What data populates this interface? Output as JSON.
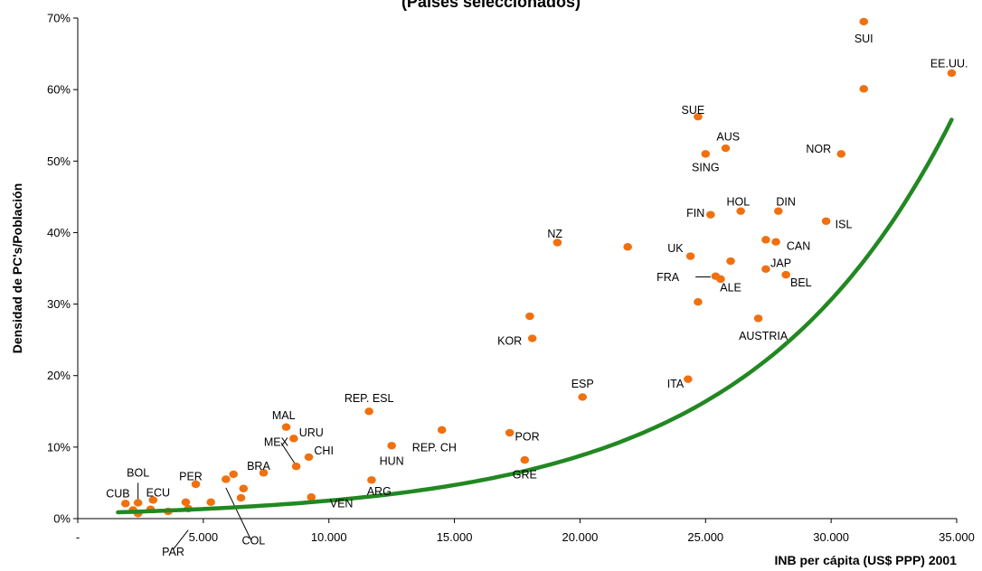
{
  "chart_data": {
    "type": "scatter",
    "title": "(Países seleccionados)",
    "xlabel": "INB per cápita (US$ PPP) 2001",
    "ylabel": "Densidad de PC's/Población",
    "xlim": [
      0,
      35000
    ],
    "ylim": [
      0,
      70
    ],
    "x_ticks": [
      {
        "value": 0,
        "label": "-"
      },
      {
        "value": 5000,
        "label": "5.000"
      },
      {
        "value": 10000,
        "label": "10.000"
      },
      {
        "value": 15000,
        "label": "15.000"
      },
      {
        "value": 20000,
        "label": "20.000"
      },
      {
        "value": 25000,
        "label": "25.000"
      },
      {
        "value": 30000,
        "label": "30.000"
      },
      {
        "value": 35000,
        "label": "35.000"
      }
    ],
    "y_ticks": [
      {
        "value": 0,
        "label": "0%"
      },
      {
        "value": 10,
        "label": "10%"
      },
      {
        "value": 20,
        "label": "20%"
      },
      {
        "value": 30,
        "label": "30%"
      },
      {
        "value": 40,
        "label": "40%"
      },
      {
        "value": 50,
        "label": "50%"
      },
      {
        "value": 60,
        "label": "60%"
      },
      {
        "value": 70,
        "label": "70%"
      }
    ],
    "marker_color": "#f07010",
    "trend_color": "#228822",
    "points": [
      {
        "x": 31300,
        "y": 69.5
      },
      {
        "x": 34800,
        "y": 62.3
      },
      {
        "x": 31300,
        "y": 60.1
      },
      {
        "x": 24700,
        "y": 56.2
      },
      {
        "x": 25800,
        "y": 51.8
      },
      {
        "x": 25000,
        "y": 51.0
      },
      {
        "x": 30400,
        "y": 51.0
      },
      {
        "x": 25200,
        "y": 42.5
      },
      {
        "x": 26400,
        "y": 43.0
      },
      {
        "x": 27900,
        "y": 43.0
      },
      {
        "x": 29800,
        "y": 41.6
      },
      {
        "x": 19100,
        "y": 38.6
      },
      {
        "x": 21900,
        "y": 38.0
      },
      {
        "x": 27400,
        "y": 39.0
      },
      {
        "x": 27800,
        "y": 38.7
      },
      {
        "x": 24400,
        "y": 36.7
      },
      {
        "x": 26000,
        "y": 36.0
      },
      {
        "x": 27400,
        "y": 34.9
      },
      {
        "x": 28200,
        "y": 34.1
      },
      {
        "x": 25400,
        "y": 33.9
      },
      {
        "x": 25600,
        "y": 33.5
      },
      {
        "x": 24700,
        "y": 30.3
      },
      {
        "x": 27100,
        "y": 28.0
      },
      {
        "x": 18000,
        "y": 28.3
      },
      {
        "x": 18100,
        "y": 25.2
      },
      {
        "x": 24300,
        "y": 19.5
      },
      {
        "x": 20100,
        "y": 17.0
      },
      {
        "x": 11600,
        "y": 15.0
      },
      {
        "x": 8300,
        "y": 12.8
      },
      {
        "x": 14500,
        "y": 12.4
      },
      {
        "x": 17200,
        "y": 12.0
      },
      {
        "x": 8600,
        "y": 11.2
      },
      {
        "x": 12500,
        "y": 10.2
      },
      {
        "x": 9200,
        "y": 8.6
      },
      {
        "x": 17800,
        "y": 8.2
      },
      {
        "x": 8700,
        "y": 7.3
      },
      {
        "x": 7400,
        "y": 6.4
      },
      {
        "x": 6200,
        "y": 6.2
      },
      {
        "x": 5900,
        "y": 5.5
      },
      {
        "x": 11700,
        "y": 5.4
      },
      {
        "x": 4700,
        "y": 4.8
      },
      {
        "x": 6600,
        "y": 4.2
      },
      {
        "x": 6500,
        "y": 2.9
      },
      {
        "x": 9300,
        "y": 3.0
      },
      {
        "x": 5300,
        "y": 2.3
      },
      {
        "x": 3000,
        "y": 2.6
      },
      {
        "x": 4300,
        "y": 2.3
      },
      {
        "x": 1900,
        "y": 2.1
      },
      {
        "x": 2400,
        "y": 2.2
      },
      {
        "x": 2200,
        "y": 1.2
      },
      {
        "x": 2900,
        "y": 1.3
      },
      {
        "x": 3600,
        "y": 1.0
      },
      {
        "x": 4400,
        "y": 1.4
      },
      {
        "x": 2400,
        "y": 0.7
      }
    ],
    "trendline": {
      "x_start": 1600,
      "x_end": 34800,
      "a": 0.72,
      "b": 0.000125
    },
    "annotations": [
      {
        "text": "SUI",
        "x": 31300,
        "y": 66.6
      },
      {
        "text": "EE.UU.",
        "x": 34700,
        "y": 63.1
      },
      {
        "text": "SUE",
        "x": 24500,
        "y": 56.6
      },
      {
        "text": "AUS",
        "x": 25900,
        "y": 52.9
      },
      {
        "text": "NOR",
        "x": 29500,
        "y": 51.2
      },
      {
        "text": "SING",
        "x": 25000,
        "y": 48.6
      },
      {
        "text": "HOL",
        "x": 26300,
        "y": 43.8
      },
      {
        "text": "DIN",
        "x": 28200,
        "y": 43.8
      },
      {
        "text": "FIN",
        "x": 24600,
        "y": 42.2
      },
      {
        "text": "ISL",
        "x": 30500,
        "y": 40.6
      },
      {
        "text": "NZ",
        "x": 19000,
        "y": 39.3
      },
      {
        "text": "CAN",
        "x": 28700,
        "y": 37.6
      },
      {
        "text": "UK",
        "x": 23800,
        "y": 37.3
      },
      {
        "text": "JAP",
        "x": 28000,
        "y": 35.2
      },
      {
        "text": "FRA",
        "x": 23500,
        "y": 33.2
      },
      {
        "text": "BEL",
        "x": 28800,
        "y": 32.5
      },
      {
        "text": "ALE",
        "x": 26000,
        "y": 31.8
      },
      {
        "text": "KOR",
        "x": 17200,
        "y": 24.3
      },
      {
        "text": "AUSTRIA",
        "x": 27300,
        "y": 25.0
      },
      {
        "text": "ITA",
        "x": 23800,
        "y": 18.3
      },
      {
        "text": "ESP",
        "x": 20100,
        "y": 18.3
      },
      {
        "text": "REP. ESL",
        "x": 11600,
        "y": 16.3
      },
      {
        "text": "MAL",
        "x": 8200,
        "y": 13.9
      },
      {
        "text": "URU",
        "x": 9300,
        "y": 11.5
      },
      {
        "text": "REP. CH",
        "x": 14200,
        "y": 9.4
      },
      {
        "text": "POR",
        "x": 17900,
        "y": 10.9
      },
      {
        "text": "MEX",
        "x": 7900,
        "y": 10.2
      },
      {
        "text": "CHI",
        "x": 9800,
        "y": 9.0
      },
      {
        "text": "HUN",
        "x": 12500,
        "y": 7.5
      },
      {
        "text": "GRE",
        "x": 17800,
        "y": 5.6
      },
      {
        "text": "BRA",
        "x": 7200,
        "y": 6.8
      },
      {
        "text": "BOL",
        "x": 2400,
        "y": 5.9
      },
      {
        "text": "PER",
        "x": 4500,
        "y": 5.4
      },
      {
        "text": "ARG",
        "x": 12000,
        "y": 3.3
      },
      {
        "text": "CUB",
        "x": 1600,
        "y": 3.0
      },
      {
        "text": "ECU",
        "x": 3200,
        "y": 3.1
      },
      {
        "text": "VEN",
        "x": 10500,
        "y": 1.6
      },
      {
        "text": "COL",
        "x": 7000,
        "y": -3.6
      },
      {
        "text": "PAR",
        "x": 3800,
        "y": -5.2
      }
    ],
    "leader_lines": [
      {
        "from": [
          2400,
          5.0
        ],
        "to": [
          2400,
          2.5
        ]
      },
      {
        "from": [
          8100,
          10.6
        ],
        "to": [
          8700,
          7.4
        ]
      },
      {
        "from": [
          6900,
          -3.0
        ],
        "to": [
          5900,
          4.3
        ]
      },
      {
        "from": [
          3800,
          -4.3
        ],
        "to": [
          4400,
          -1.6
        ]
      },
      {
        "from": [
          24600,
          33.8
        ],
        "to": [
          25200,
          33.8
        ]
      }
    ]
  }
}
